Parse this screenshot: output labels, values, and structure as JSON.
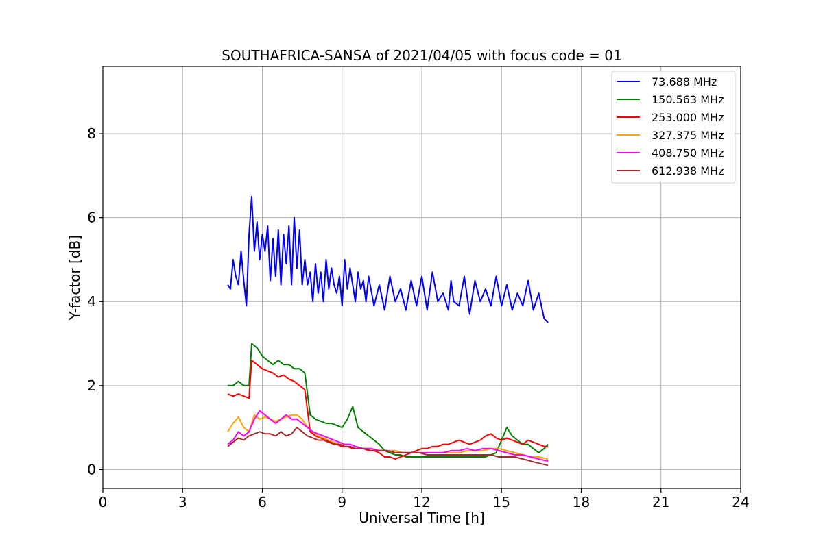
{
  "chart_data": {
    "type": "line",
    "title": "SOUTHAFRICA-SANSA of 2021/04/05 with focus code = 01",
    "xlabel": "Universal Time [h]",
    "ylabel": "Y-factor [dB]",
    "xlim": [
      0,
      24
    ],
    "ylim": [
      -0.45,
      9.6
    ],
    "xticks": [
      0,
      3,
      6,
      9,
      12,
      15,
      18,
      21,
      24
    ],
    "yticks": [
      0,
      2,
      4,
      6,
      8
    ],
    "grid": true,
    "legend_position": "top-right",
    "series": [
      {
        "name": " 73.688 MHz",
        "color": "#0000ff",
        "x": [
          4.7,
          4.8,
          4.9,
          5.0,
          5.1,
          5.2,
          5.3,
          5.4,
          5.5,
          5.6,
          5.7,
          5.8,
          5.9,
          6.0,
          6.1,
          6.2,
          6.3,
          6.4,
          6.5,
          6.6,
          6.7,
          6.8,
          6.9,
          7.0,
          7.1,
          7.2,
          7.3,
          7.4,
          7.5,
          7.6,
          7.7,
          7.8,
          7.9,
          8.0,
          8.1,
          8.2,
          8.3,
          8.4,
          8.5,
          8.6,
          8.7,
          8.8,
          8.9,
          9.0,
          9.1,
          9.2,
          9.3,
          9.4,
          9.5,
          9.6,
          9.7,
          9.8,
          9.9,
          10.0,
          10.2,
          10.4,
          10.6,
          10.8,
          11.0,
          11.2,
          11.4,
          11.6,
          11.8,
          12.0,
          12.2,
          12.4,
          12.6,
          12.8,
          13.0,
          13.1,
          13.2,
          13.4,
          13.6,
          13.8,
          14.0,
          14.2,
          14.4,
          14.6,
          14.8,
          15.0,
          15.2,
          15.4,
          15.6,
          15.8,
          16.0,
          16.2,
          16.4,
          16.6,
          16.75
        ],
        "values": [
          4.4,
          4.3,
          5.0,
          4.6,
          4.4,
          5.2,
          4.5,
          3.9,
          5.6,
          6.5,
          5.2,
          5.9,
          5.0,
          5.6,
          5.2,
          5.8,
          4.5,
          5.5,
          4.6,
          5.7,
          4.4,
          5.6,
          4.9,
          5.8,
          4.4,
          6.0,
          4.8,
          5.7,
          4.4,
          5.0,
          4.4,
          4.7,
          4.0,
          4.9,
          4.2,
          4.7,
          4.0,
          5.0,
          4.3,
          4.8,
          4.4,
          4.2,
          4.6,
          3.9,
          5.0,
          4.3,
          4.8,
          4.4,
          4.0,
          4.7,
          4.3,
          4.5,
          4.0,
          4.6,
          3.9,
          4.4,
          3.8,
          4.6,
          4.0,
          4.3,
          3.8,
          4.5,
          3.9,
          4.6,
          3.8,
          4.7,
          4.0,
          4.2,
          3.8,
          4.5,
          4.0,
          3.9,
          4.6,
          3.7,
          4.5,
          4.0,
          4.3,
          3.9,
          4.6,
          3.9,
          4.4,
          3.8,
          4.2,
          3.9,
          4.5,
          3.8,
          4.2,
          3.6,
          3.5
        ]
      },
      {
        "name": "150.563 MHz",
        "color": "#008000",
        "x": [
          4.7,
          4.9,
          5.1,
          5.3,
          5.5,
          5.6,
          5.8,
          6.0,
          6.2,
          6.4,
          6.6,
          6.8,
          7.0,
          7.2,
          7.4,
          7.6,
          7.8,
          8.0,
          8.2,
          8.4,
          8.6,
          8.8,
          9.0,
          9.2,
          9.4,
          9.6,
          9.8,
          10.0,
          10.2,
          10.4,
          10.6,
          10.8,
          11.0,
          11.2,
          11.4,
          11.6,
          11.8,
          12.0,
          12.2,
          12.4,
          12.6,
          12.8,
          13.0,
          13.2,
          13.4,
          13.6,
          13.8,
          14.0,
          14.2,
          14.4,
          14.6,
          14.8,
          15.0,
          15.2,
          15.4,
          15.6,
          15.8,
          16.0,
          16.2,
          16.4,
          16.6,
          16.75
        ],
        "values": [
          2.0,
          2.0,
          2.1,
          2.0,
          2.0,
          3.0,
          2.9,
          2.7,
          2.6,
          2.5,
          2.6,
          2.5,
          2.5,
          2.4,
          2.4,
          2.3,
          1.3,
          1.2,
          1.15,
          1.1,
          1.1,
          1.05,
          1.0,
          1.2,
          1.5,
          1.0,
          0.9,
          0.8,
          0.7,
          0.6,
          0.45,
          0.4,
          0.35,
          0.35,
          0.3,
          0.3,
          0.3,
          0.3,
          0.3,
          0.3,
          0.3,
          0.3,
          0.3,
          0.3,
          0.3,
          0.3,
          0.3,
          0.3,
          0.3,
          0.3,
          0.35,
          0.4,
          0.7,
          1.0,
          0.8,
          0.7,
          0.6,
          0.6,
          0.5,
          0.4,
          0.5,
          0.6
        ]
      },
      {
        "name": "253.000 MHz",
        "color": "#ff0000",
        "x": [
          4.7,
          4.9,
          5.1,
          5.3,
          5.5,
          5.6,
          5.8,
          6.0,
          6.2,
          6.4,
          6.6,
          6.8,
          7.0,
          7.2,
          7.4,
          7.6,
          7.8,
          8.0,
          8.2,
          8.4,
          8.6,
          8.8,
          9.0,
          9.2,
          9.4,
          9.6,
          9.8,
          10.0,
          10.2,
          10.4,
          10.6,
          10.8,
          11.0,
          11.2,
          11.4,
          11.6,
          11.8,
          12.0,
          12.2,
          12.4,
          12.6,
          12.8,
          13.0,
          13.2,
          13.4,
          13.6,
          13.8,
          14.0,
          14.2,
          14.4,
          14.6,
          14.8,
          15.0,
          15.2,
          15.4,
          15.6,
          15.8,
          16.0,
          16.2,
          16.4,
          16.6,
          16.75
        ],
        "values": [
          1.8,
          1.75,
          1.8,
          1.75,
          1.7,
          2.6,
          2.5,
          2.4,
          2.35,
          2.3,
          2.2,
          2.25,
          2.15,
          2.1,
          2.0,
          1.9,
          0.9,
          0.8,
          0.75,
          0.7,
          0.65,
          0.6,
          0.55,
          0.55,
          0.5,
          0.5,
          0.5,
          0.45,
          0.45,
          0.4,
          0.3,
          0.3,
          0.25,
          0.3,
          0.35,
          0.4,
          0.45,
          0.5,
          0.5,
          0.55,
          0.55,
          0.6,
          0.6,
          0.65,
          0.7,
          0.65,
          0.6,
          0.65,
          0.7,
          0.8,
          0.85,
          0.75,
          0.7,
          0.75,
          0.7,
          0.65,
          0.6,
          0.7,
          0.65,
          0.6,
          0.55,
          0.55
        ]
      },
      {
        "name": "327.375 MHz",
        "color": "#ffa500",
        "x": [
          4.7,
          4.9,
          5.1,
          5.3,
          5.5,
          5.7,
          5.9,
          6.1,
          6.3,
          6.5,
          6.7,
          6.9,
          7.1,
          7.3,
          7.5,
          7.7,
          7.9,
          8.1,
          8.3,
          8.5,
          8.7,
          8.9,
          9.1,
          9.3,
          9.5,
          9.8,
          10.1,
          10.4,
          10.7,
          11.0,
          11.3,
          11.6,
          11.9,
          12.2,
          12.5,
          12.8,
          13.1,
          13.4,
          13.7,
          14.0,
          14.3,
          14.6,
          14.9,
          15.2,
          15.5,
          15.8,
          16.1,
          16.4,
          16.75
        ],
        "values": [
          0.9,
          1.1,
          1.25,
          1.0,
          0.9,
          1.3,
          1.2,
          1.25,
          1.2,
          1.15,
          1.2,
          1.25,
          1.3,
          1.3,
          1.2,
          1.0,
          0.9,
          0.8,
          0.75,
          0.7,
          0.65,
          0.6,
          0.6,
          0.6,
          0.55,
          0.5,
          0.5,
          0.45,
          0.45,
          0.45,
          0.4,
          0.4,
          0.4,
          0.4,
          0.4,
          0.4,
          0.4,
          0.4,
          0.45,
          0.45,
          0.45,
          0.5,
          0.5,
          0.45,
          0.4,
          0.35,
          0.3,
          0.3,
          0.25
        ]
      },
      {
        "name": "408.750 MHz",
        "color": "#ff00ff",
        "x": [
          4.7,
          4.9,
          5.1,
          5.3,
          5.5,
          5.7,
          5.9,
          6.1,
          6.3,
          6.5,
          6.7,
          6.9,
          7.1,
          7.3,
          7.5,
          7.7,
          7.9,
          8.1,
          8.3,
          8.5,
          8.7,
          8.9,
          9.1,
          9.3,
          9.5,
          9.8,
          10.1,
          10.4,
          10.7,
          11.0,
          11.3,
          11.6,
          11.9,
          12.2,
          12.5,
          12.8,
          13.1,
          13.4,
          13.7,
          14.0,
          14.3,
          14.6,
          14.9,
          15.2,
          15.5,
          15.8,
          16.1,
          16.4,
          16.75
        ],
        "values": [
          0.6,
          0.7,
          0.9,
          0.8,
          0.9,
          1.2,
          1.4,
          1.3,
          1.2,
          1.1,
          1.2,
          1.3,
          1.2,
          1.2,
          1.1,
          1.0,
          0.9,
          0.85,
          0.8,
          0.75,
          0.7,
          0.65,
          0.6,
          0.6,
          0.55,
          0.5,
          0.5,
          0.45,
          0.45,
          0.4,
          0.4,
          0.4,
          0.4,
          0.4,
          0.4,
          0.4,
          0.45,
          0.45,
          0.5,
          0.45,
          0.5,
          0.5,
          0.45,
          0.4,
          0.35,
          0.35,
          0.3,
          0.25,
          0.2
        ]
      },
      {
        "name": "612.938 MHz",
        "color": "#a52a2a",
        "x": [
          4.7,
          4.9,
          5.1,
          5.3,
          5.5,
          5.7,
          5.9,
          6.1,
          6.3,
          6.5,
          6.7,
          6.9,
          7.1,
          7.3,
          7.5,
          7.7,
          7.9,
          8.1,
          8.3,
          8.5,
          8.7,
          8.9,
          9.1,
          9.3,
          9.5,
          9.8,
          10.1,
          10.4,
          10.7,
          11.0,
          11.3,
          11.6,
          11.9,
          12.2,
          12.5,
          12.8,
          13.1,
          13.4,
          13.7,
          14.0,
          14.3,
          14.6,
          14.9,
          15.2,
          15.5,
          15.8,
          16.1,
          16.4,
          16.75
        ],
        "values": [
          0.55,
          0.65,
          0.75,
          0.7,
          0.8,
          0.85,
          0.9,
          0.85,
          0.85,
          0.8,
          0.9,
          0.8,
          0.85,
          1.0,
          0.9,
          0.8,
          0.75,
          0.7,
          0.7,
          0.65,
          0.6,
          0.6,
          0.55,
          0.55,
          0.5,
          0.5,
          0.45,
          0.45,
          0.45,
          0.4,
          0.4,
          0.4,
          0.4,
          0.35,
          0.35,
          0.35,
          0.35,
          0.35,
          0.35,
          0.35,
          0.35,
          0.35,
          0.3,
          0.3,
          0.3,
          0.25,
          0.2,
          0.15,
          0.1
        ]
      }
    ]
  }
}
